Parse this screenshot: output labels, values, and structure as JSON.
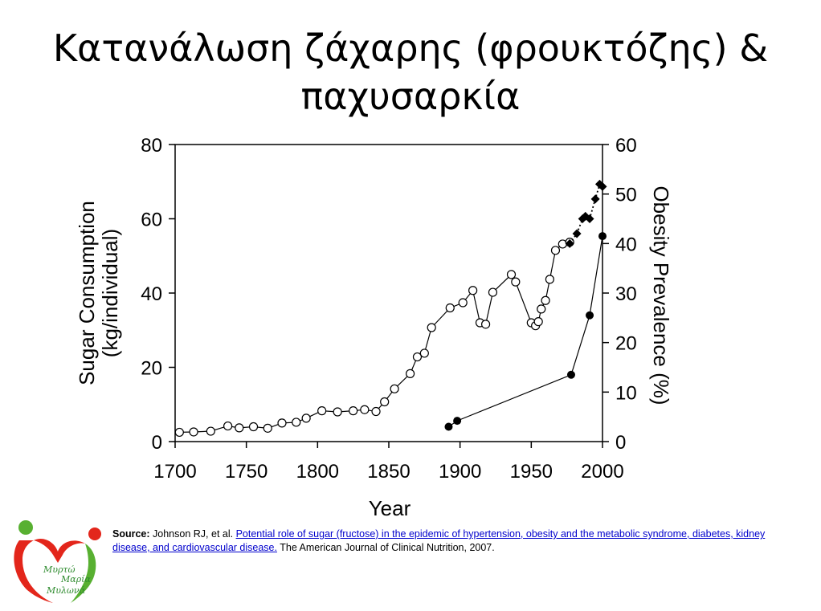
{
  "slide": {
    "title_line1": "Κατανάλωση ζάχαρης (φρουκτόζης) &",
    "title_line2": "παχυσαρκία"
  },
  "chart_data": {
    "type": "line",
    "xlabel": "Year",
    "ylabel_line1": "Sugar Consumption",
    "ylabel_line2": "(kg/individual)",
    "y2label": "Obesity Prevalence (%)",
    "xlim": [
      1700,
      2000
    ],
    "ylim": [
      0,
      80
    ],
    "y2lim": [
      0,
      60
    ],
    "xticks": [
      "1700",
      "1750",
      "1800",
      "1850",
      "1900",
      "1950",
      "2000"
    ],
    "yticks": [
      "0",
      "20",
      "40",
      "60",
      "80"
    ],
    "y2ticks": [
      "0",
      "10",
      "20",
      "30",
      "40",
      "50",
      "60"
    ],
    "grid": false,
    "series": [
      {
        "axis": "left",
        "marker": "open-circle",
        "x": [
          1703,
          1713,
          1725,
          1737,
          1745,
          1755,
          1765,
          1775,
          1785,
          1792,
          1803,
          1814,
          1825,
          1833,
          1841,
          1847,
          1854,
          1865,
          1870,
          1875,
          1880,
          1893,
          1902,
          1909,
          1914,
          1918,
          1923,
          1936,
          1939,
          1950,
          1953,
          1955,
          1957,
          1960,
          1963,
          1967,
          1972,
          1977
        ],
        "y": [
          2.5,
          2.6,
          2.8,
          4.2,
          3.7,
          4.0,
          3.6,
          5.0,
          5.2,
          6.3,
          8.3,
          8.0,
          8.3,
          8.6,
          8.1,
          10.7,
          14.2,
          18.3,
          22.8,
          23.8,
          30.7,
          36.0,
          37.4,
          40.7,
          32.0,
          31.6,
          40.2,
          45.0,
          43.0,
          32.0,
          31.2,
          32.3,
          35.7,
          38.0,
          43.7,
          51.5,
          53.2,
          53.7
        ]
      },
      {
        "axis": "right",
        "marker": "filled-diamond",
        "line": "dotted",
        "x": [
          1977,
          1982,
          1986,
          1988,
          1991,
          1995,
          1998,
          2000
        ],
        "y": [
          40.0,
          42.0,
          45.0,
          45.5,
          45.0,
          49.0,
          52.0,
          51.5
        ]
      },
      {
        "axis": "right",
        "marker": "filled-circle",
        "x": [
          1892,
          1898,
          1978,
          1991,
          2000
        ],
        "y": [
          3.0,
          4.2,
          13.5,
          25.5,
          41.5
        ]
      }
    ]
  },
  "source": {
    "label": "Source:",
    "authors": "Johnson RJ, et al.",
    "link_text": "Potential role of sugar (fructose) in the epidemic of hypertension, obesity and the metabolic syndrome, diabetes, kidney disease, and cardiovascular disease.",
    "journal": "The American Journal of Clinical Nutrition, 2007."
  },
  "logo": {
    "line1": "Μυρτώ",
    "line2": "Μαρία",
    "line3": "Μυλωνά",
    "colors": {
      "red": "#e3261b",
      "green": "#58b031",
      "text": "#2e8b2e"
    }
  }
}
